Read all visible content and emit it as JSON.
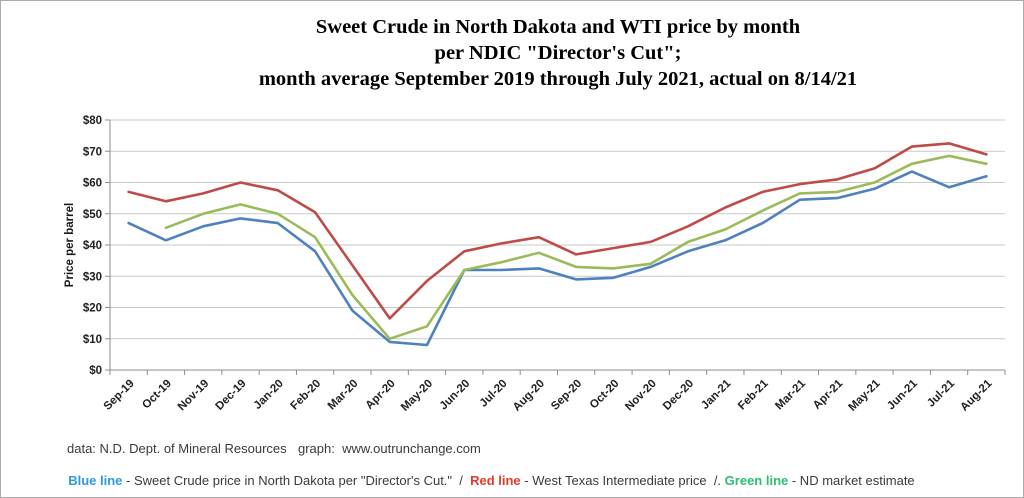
{
  "title": {
    "line1": "Sweet Crude in North Dakota and WTI price by month",
    "line2": "per NDIC \"Director's Cut\";",
    "line3": "month average September 2019 through July 2021, actual on 8/14/21"
  },
  "chart_data": {
    "type": "line",
    "categories": [
      "Sep-19",
      "Oct-19",
      "Nov-19",
      "Dec-19",
      "Jan-20",
      "Feb-20",
      "Mar-20",
      "Apr-20",
      "May-20",
      "Jun-20",
      "Jul-20",
      "Aug-20",
      "Sep-20",
      "Oct-20",
      "Nov-20",
      "Dec-20",
      "Jan-21",
      "Feb-21",
      "Mar-21",
      "Apr-21",
      "May-21",
      "Jun-21",
      "Jul-21",
      "Aug-21"
    ],
    "series": [
      {
        "name": "Sweet Crude price in North Dakota",
        "color": "#4F81BD",
        "values": [
          47,
          41.5,
          46,
          48.5,
          47,
          38,
          19,
          9,
          8,
          32,
          32,
          32.5,
          29,
          29.5,
          33,
          38,
          41.5,
          47,
          54.5,
          55,
          58,
          63.5,
          58.5,
          62
        ]
      },
      {
        "name": "West Texas Intermediate price",
        "color": "#BE4B48",
        "values": [
          57,
          54,
          56.5,
          60,
          57.5,
          50.5,
          33.5,
          16.5,
          28.5,
          38,
          40.5,
          42.5,
          37,
          39,
          41,
          46,
          52,
          57,
          59.5,
          61,
          64.5,
          71.5,
          72.5,
          69
        ]
      },
      {
        "name": "ND market estimate",
        "color": "#9BBB59",
        "values": [
          null,
          45.5,
          50,
          53,
          50,
          42.5,
          24,
          10,
          14,
          32,
          34.5,
          37.5,
          33,
          32.5,
          34,
          41,
          45,
          51,
          56.5,
          57,
          60,
          66,
          68.5,
          66
        ]
      }
    ],
    "ylabel": "Price per barrel",
    "xlabel": "",
    "ylim": [
      0,
      80
    ],
    "ytick_step": 10,
    "ytick_labels": [
      "$0",
      "$10",
      "$20",
      "$30",
      "$40",
      "$50",
      "$60",
      "$70",
      "$80"
    ],
    "grid": true,
    "legend_position": "below-as-text"
  },
  "colors": {
    "gridline": "#c9c9c9",
    "axis": "#8c8c8c",
    "tick_label": "#212121"
  },
  "footer": {
    "data_source": "data: N.D. Dept. of Mineral Resources",
    "graph_credit": "graph:  www.outrunchange.com",
    "legend": {
      "blue_label": "Blue line",
      "blue_desc": " - Sweet Crude price in North Dakota per \"Director's Cut.\"  /  ",
      "red_label": "Red line",
      "red_desc": " - West Texas Intermediate price  /. ",
      "green_label": "Green line",
      "green_desc": " - ND market estimate"
    }
  }
}
